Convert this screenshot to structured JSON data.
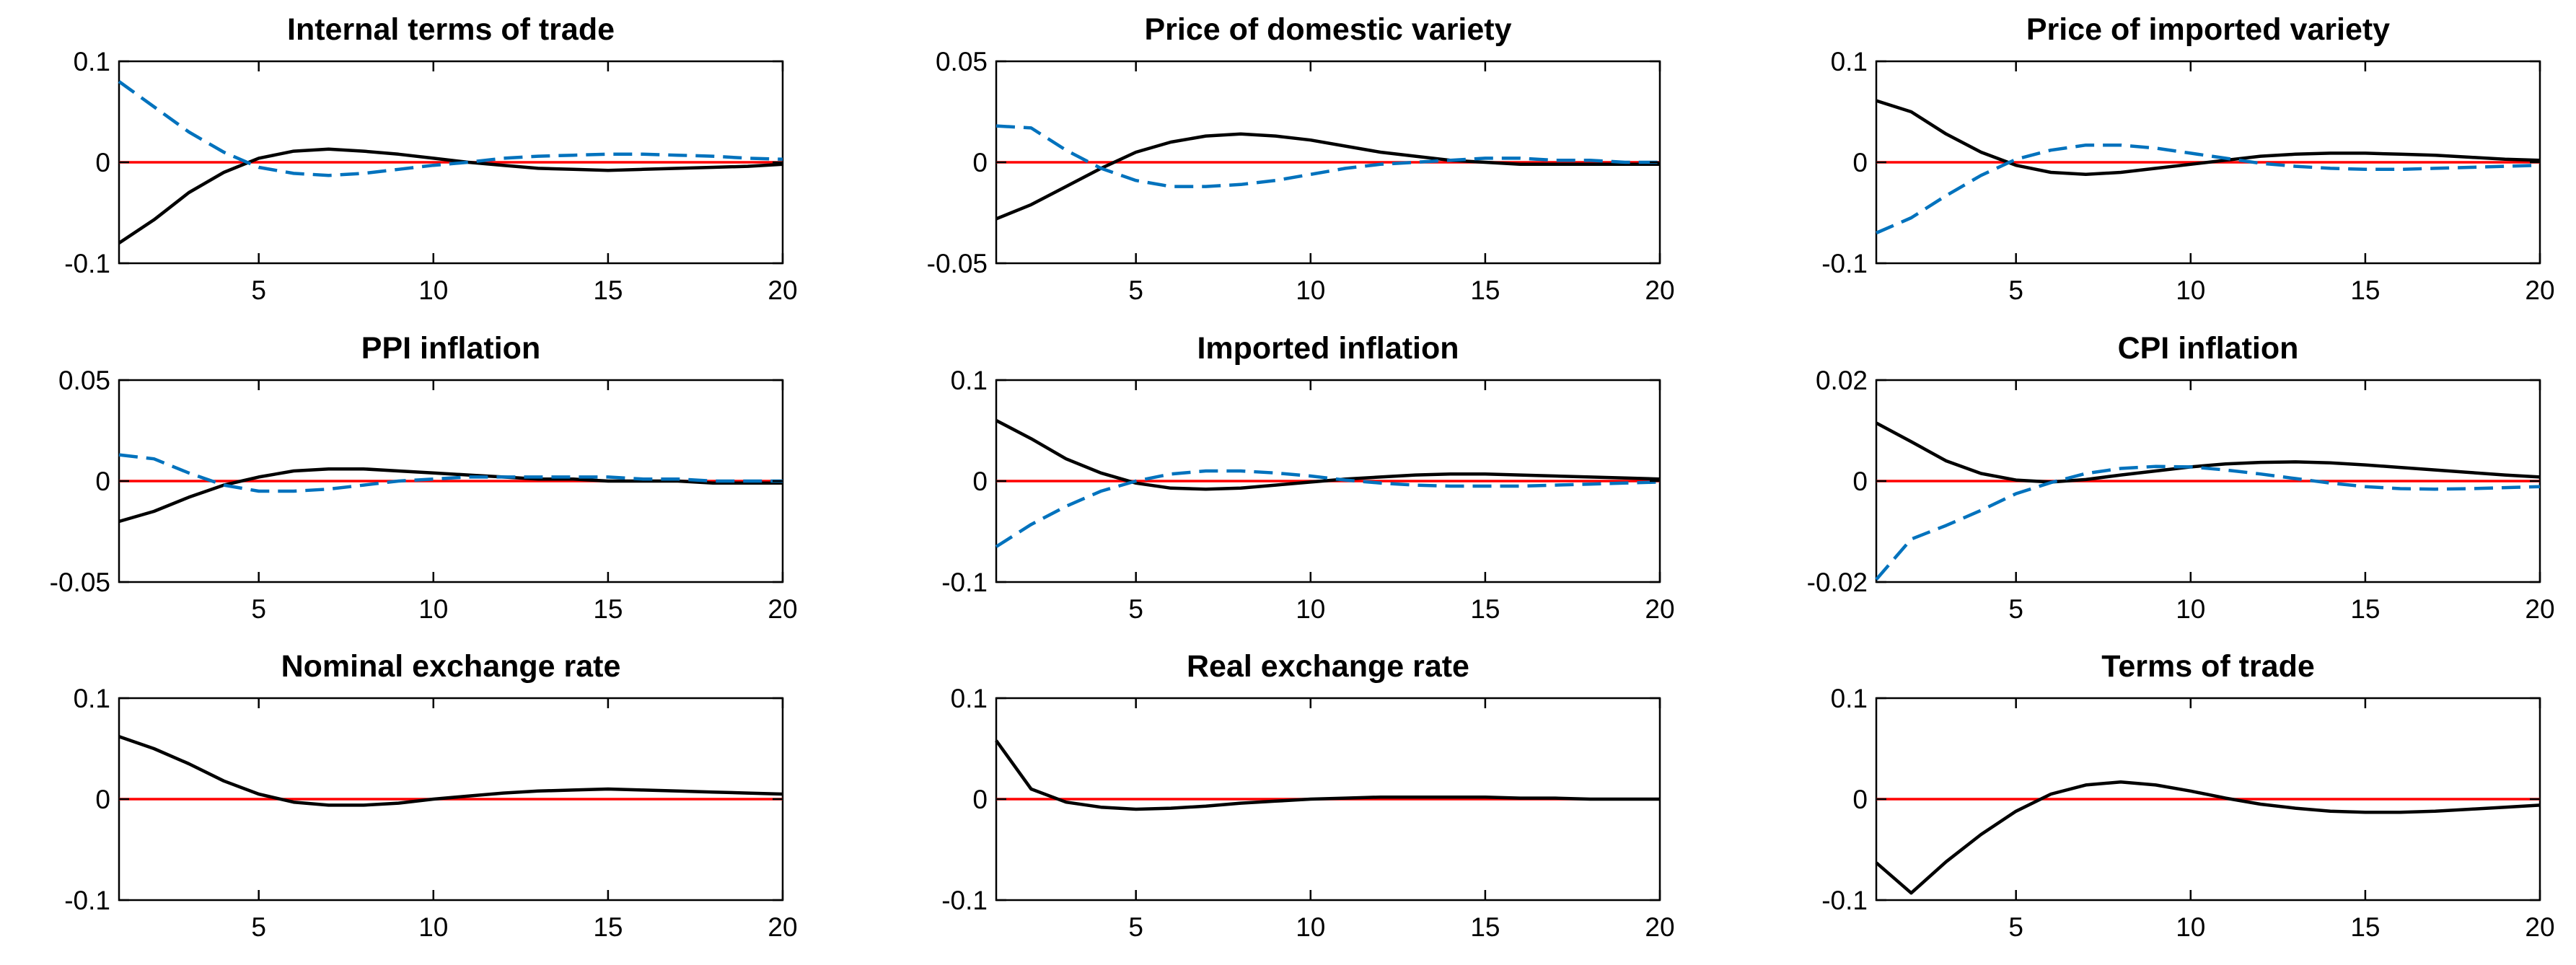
{
  "chart_data": [
    {
      "type": "line",
      "title": "Internal terms of trade",
      "xlim": [
        1,
        20
      ],
      "ylim": [
        -0.1,
        0.1
      ],
      "xticks": [
        5,
        10,
        15,
        20
      ],
      "xtick_labels": [
        "5",
        "10",
        "15",
        "20"
      ],
      "yticks": [
        -0.1,
        0,
        0.1
      ],
      "ytick_labels": [
        "-0.1",
        "0",
        "0.1"
      ],
      "x": [
        1,
        2,
        3,
        4,
        5,
        6,
        7,
        8,
        9,
        10,
        11,
        12,
        13,
        14,
        15,
        16,
        17,
        18,
        19,
        20
      ],
      "zero_line": true,
      "series": [
        {
          "name": "solid",
          "style": "solid",
          "values": [
            -0.08,
            -0.057,
            -0.03,
            -0.01,
            0.004,
            0.011,
            0.013,
            0.011,
            0.008,
            0.004,
            0.0,
            -0.003,
            -0.006,
            -0.007,
            -0.008,
            -0.007,
            -0.006,
            -0.005,
            -0.004,
            -0.002
          ]
        },
        {
          "name": "dashed",
          "style": "dashed",
          "values": [
            0.08,
            0.055,
            0.03,
            0.01,
            -0.005,
            -0.011,
            -0.013,
            -0.011,
            -0.007,
            -0.003,
            0.0,
            0.004,
            0.006,
            0.007,
            0.008,
            0.008,
            0.007,
            0.006,
            0.004,
            0.003
          ]
        }
      ]
    },
    {
      "type": "line",
      "title": "Price of domestic variety",
      "xlim": [
        1,
        20
      ],
      "ylim": [
        -0.05,
        0.05
      ],
      "xticks": [
        5,
        10,
        15,
        20
      ],
      "xtick_labels": [
        "5",
        "10",
        "15",
        "20"
      ],
      "yticks": [
        -0.05,
        0,
        0.05
      ],
      "ytick_labels": [
        "-0.05",
        "0",
        "0.05"
      ],
      "x": [
        1,
        2,
        3,
        4,
        5,
        6,
        7,
        8,
        9,
        10,
        11,
        12,
        13,
        14,
        15,
        16,
        17,
        18,
        19,
        20
      ],
      "zero_line": true,
      "series": [
        {
          "name": "solid",
          "style": "solid",
          "values": [
            -0.028,
            -0.021,
            -0.012,
            -0.003,
            0.005,
            0.01,
            0.013,
            0.014,
            0.013,
            0.011,
            0.008,
            0.005,
            0.003,
            0.001,
            0.0,
            -0.001,
            -0.001,
            -0.001,
            -0.001,
            -0.001
          ]
        },
        {
          "name": "dashed",
          "style": "dashed",
          "values": [
            0.018,
            0.017,
            0.006,
            -0.003,
            -0.009,
            -0.012,
            -0.012,
            -0.011,
            -0.009,
            -0.006,
            -0.003,
            -0.001,
            0.0,
            0.001,
            0.002,
            0.002,
            0.001,
            0.001,
            0.0,
            0.0
          ]
        }
      ]
    },
    {
      "type": "line",
      "title": "Price of imported variety",
      "xlim": [
        1,
        20
      ],
      "ylim": [
        -0.1,
        0.1
      ],
      "xticks": [
        5,
        10,
        15,
        20
      ],
      "xtick_labels": [
        "5",
        "10",
        "15",
        "20"
      ],
      "yticks": [
        -0.1,
        0,
        0.1
      ],
      "ytick_labels": [
        "-0.1",
        "0",
        "0.1"
      ],
      "x": [
        1,
        2,
        3,
        4,
        5,
        6,
        7,
        8,
        9,
        10,
        11,
        12,
        13,
        14,
        15,
        16,
        17,
        18,
        19,
        20
      ],
      "zero_line": true,
      "series": [
        {
          "name": "solid",
          "style": "solid",
          "values": [
            0.061,
            0.05,
            0.028,
            0.01,
            -0.003,
            -0.01,
            -0.012,
            -0.01,
            -0.006,
            -0.002,
            0.002,
            0.006,
            0.008,
            0.009,
            0.009,
            0.008,
            0.007,
            0.005,
            0.003,
            0.002
          ]
        },
        {
          "name": "dashed",
          "style": "dashed",
          "values": [
            -0.07,
            -0.055,
            -0.033,
            -0.013,
            0.003,
            0.012,
            0.017,
            0.017,
            0.014,
            0.009,
            0.004,
            -0.001,
            -0.004,
            -0.006,
            -0.007,
            -0.007,
            -0.006,
            -0.005,
            -0.004,
            -0.003
          ]
        }
      ]
    },
    {
      "type": "line",
      "title": "PPI inflation",
      "xlim": [
        1,
        20
      ],
      "ylim": [
        -0.05,
        0.05
      ],
      "xticks": [
        5,
        10,
        15,
        20
      ],
      "xtick_labels": [
        "5",
        "10",
        "15",
        "20"
      ],
      "yticks": [
        -0.05,
        0,
        0.05
      ],
      "ytick_labels": [
        "-0.05",
        "0",
        "0.05"
      ],
      "x": [
        1,
        2,
        3,
        4,
        5,
        6,
        7,
        8,
        9,
        10,
        11,
        12,
        13,
        14,
        15,
        16,
        17,
        18,
        19,
        20
      ],
      "zero_line": true,
      "series": [
        {
          "name": "solid",
          "style": "solid",
          "values": [
            -0.02,
            -0.015,
            -0.008,
            -0.002,
            0.002,
            0.005,
            0.006,
            0.006,
            0.005,
            0.004,
            0.003,
            0.002,
            0.001,
            0.001,
            0.0,
            0.0,
            0.0,
            -0.001,
            -0.001,
            -0.001
          ]
        },
        {
          "name": "dashed",
          "style": "dashed",
          "values": [
            0.013,
            0.011,
            0.004,
            -0.002,
            -0.005,
            -0.005,
            -0.004,
            -0.002,
            0.0,
            0.001,
            0.002,
            0.002,
            0.002,
            0.002,
            0.002,
            0.001,
            0.001,
            0.0,
            0.0,
            0.0
          ]
        }
      ]
    },
    {
      "type": "line",
      "title": "Imported inflation",
      "xlim": [
        1,
        20
      ],
      "ylim": [
        -0.1,
        0.1
      ],
      "xticks": [
        5,
        10,
        15,
        20
      ],
      "xtick_labels": [
        "5",
        "10",
        "15",
        "20"
      ],
      "yticks": [
        -0.1,
        0,
        0.1
      ],
      "ytick_labels": [
        "-0.1",
        "0",
        "0.1"
      ],
      "x": [
        1,
        2,
        3,
        4,
        5,
        6,
        7,
        8,
        9,
        10,
        11,
        12,
        13,
        14,
        15,
        16,
        17,
        18,
        19,
        20
      ],
      "zero_line": true,
      "series": [
        {
          "name": "solid",
          "style": "solid",
          "values": [
            0.06,
            0.042,
            0.022,
            0.008,
            -0.002,
            -0.007,
            -0.008,
            -0.007,
            -0.004,
            -0.001,
            0.002,
            0.004,
            0.006,
            0.007,
            0.007,
            0.006,
            0.005,
            0.004,
            0.003,
            0.002
          ]
        },
        {
          "name": "dashed",
          "style": "dashed",
          "values": [
            -0.065,
            -0.043,
            -0.025,
            -0.01,
            0.0,
            0.007,
            0.01,
            0.01,
            0.008,
            0.005,
            0.001,
            -0.002,
            -0.004,
            -0.005,
            -0.005,
            -0.005,
            -0.004,
            -0.003,
            -0.002,
            -0.001
          ]
        }
      ]
    },
    {
      "type": "line",
      "title": "CPI inflation",
      "xlim": [
        1,
        20
      ],
      "ylim": [
        -0.02,
        0.02
      ],
      "xticks": [
        5,
        10,
        15,
        20
      ],
      "xtick_labels": [
        "5",
        "10",
        "15",
        "20"
      ],
      "yticks": [
        -0.02,
        0,
        0.02
      ],
      "ytick_labels": [
        "-0.02",
        "0",
        "0.02"
      ],
      "x": [
        1,
        2,
        3,
        4,
        5,
        6,
        7,
        8,
        9,
        10,
        11,
        12,
        13,
        14,
        15,
        16,
        17,
        18,
        19,
        20
      ],
      "zero_line": true,
      "series": [
        {
          "name": "solid",
          "style": "solid",
          "values": [
            0.0115,
            0.0078,
            0.004,
            0.0015,
            0.0002,
            -0.0002,
            0.0003,
            0.0012,
            0.002,
            0.0028,
            0.0034,
            0.0037,
            0.0038,
            0.0036,
            0.0032,
            0.0027,
            0.0022,
            0.0017,
            0.0012,
            0.0008
          ]
        },
        {
          "name": "dashed",
          "style": "dashed",
          "values": [
            -0.0195,
            -0.0115,
            -0.0088,
            -0.0058,
            -0.0025,
            -0.0003,
            0.0015,
            0.0025,
            0.0029,
            0.0028,
            0.0022,
            0.0014,
            0.0005,
            -0.0004,
            -0.0011,
            -0.0015,
            -0.0016,
            -0.0015,
            -0.0013,
            -0.0011
          ]
        }
      ]
    },
    {
      "type": "line",
      "title": "Nominal exchange rate",
      "xlim": [
        1,
        20
      ],
      "ylim": [
        -0.1,
        0.1
      ],
      "xticks": [
        5,
        10,
        15,
        20
      ],
      "xtick_labels": [
        "5",
        "10",
        "15",
        "20"
      ],
      "yticks": [
        -0.1,
        0,
        0.1
      ],
      "ytick_labels": [
        "-0.1",
        "0",
        "0.1"
      ],
      "x": [
        1,
        2,
        3,
        4,
        5,
        6,
        7,
        8,
        9,
        10,
        11,
        12,
        13,
        14,
        15,
        16,
        17,
        18,
        19,
        20
      ],
      "zero_line": true,
      "series": [
        {
          "name": "solid",
          "style": "solid",
          "values": [
            0.062,
            0.05,
            0.035,
            0.018,
            0.005,
            -0.003,
            -0.006,
            -0.006,
            -0.004,
            0.0,
            0.003,
            0.006,
            0.008,
            0.009,
            0.01,
            0.009,
            0.008,
            0.007,
            0.006,
            0.005
          ]
        }
      ]
    },
    {
      "type": "line",
      "title": "Real exchange rate",
      "xlim": [
        1,
        20
      ],
      "ylim": [
        -0.1,
        0.1
      ],
      "xticks": [
        5,
        10,
        15,
        20
      ],
      "xtick_labels": [
        "5",
        "10",
        "15",
        "20"
      ],
      "yticks": [
        -0.1,
        0,
        0.1
      ],
      "ytick_labels": [
        "-0.1",
        "0",
        "0.1"
      ],
      "x": [
        1,
        2,
        3,
        4,
        5,
        6,
        7,
        8,
        9,
        10,
        11,
        12,
        13,
        14,
        15,
        16,
        17,
        18,
        19,
        20
      ],
      "zero_line": true,
      "series": [
        {
          "name": "solid",
          "style": "solid",
          "values": [
            0.058,
            0.01,
            -0.003,
            -0.008,
            -0.01,
            -0.009,
            -0.007,
            -0.004,
            -0.002,
            0.0,
            0.001,
            0.002,
            0.002,
            0.002,
            0.002,
            0.001,
            0.001,
            0.0,
            0.0,
            0.0
          ]
        }
      ]
    },
    {
      "type": "line",
      "title": "Terms of trade",
      "xlim": [
        1,
        20
      ],
      "ylim": [
        -0.1,
        0.1
      ],
      "xticks": [
        5,
        10,
        15,
        20
      ],
      "xtick_labels": [
        "5",
        "10",
        "15",
        "20"
      ],
      "yticks": [
        -0.1,
        0,
        0.1
      ],
      "ytick_labels": [
        "-0.1",
        "0",
        "0.1"
      ],
      "x": [
        1,
        2,
        3,
        4,
        5,
        6,
        7,
        8,
        9,
        10,
        11,
        12,
        13,
        14,
        15,
        16,
        17,
        18,
        19,
        20
      ],
      "zero_line": true,
      "series": [
        {
          "name": "solid",
          "style": "solid",
          "values": [
            -0.063,
            -0.093,
            -0.062,
            -0.035,
            -0.012,
            0.005,
            0.014,
            0.017,
            0.014,
            0.008,
            0.001,
            -0.005,
            -0.009,
            -0.012,
            -0.013,
            -0.013,
            -0.012,
            -0.01,
            -0.008,
            -0.006
          ]
        }
      ]
    }
  ]
}
